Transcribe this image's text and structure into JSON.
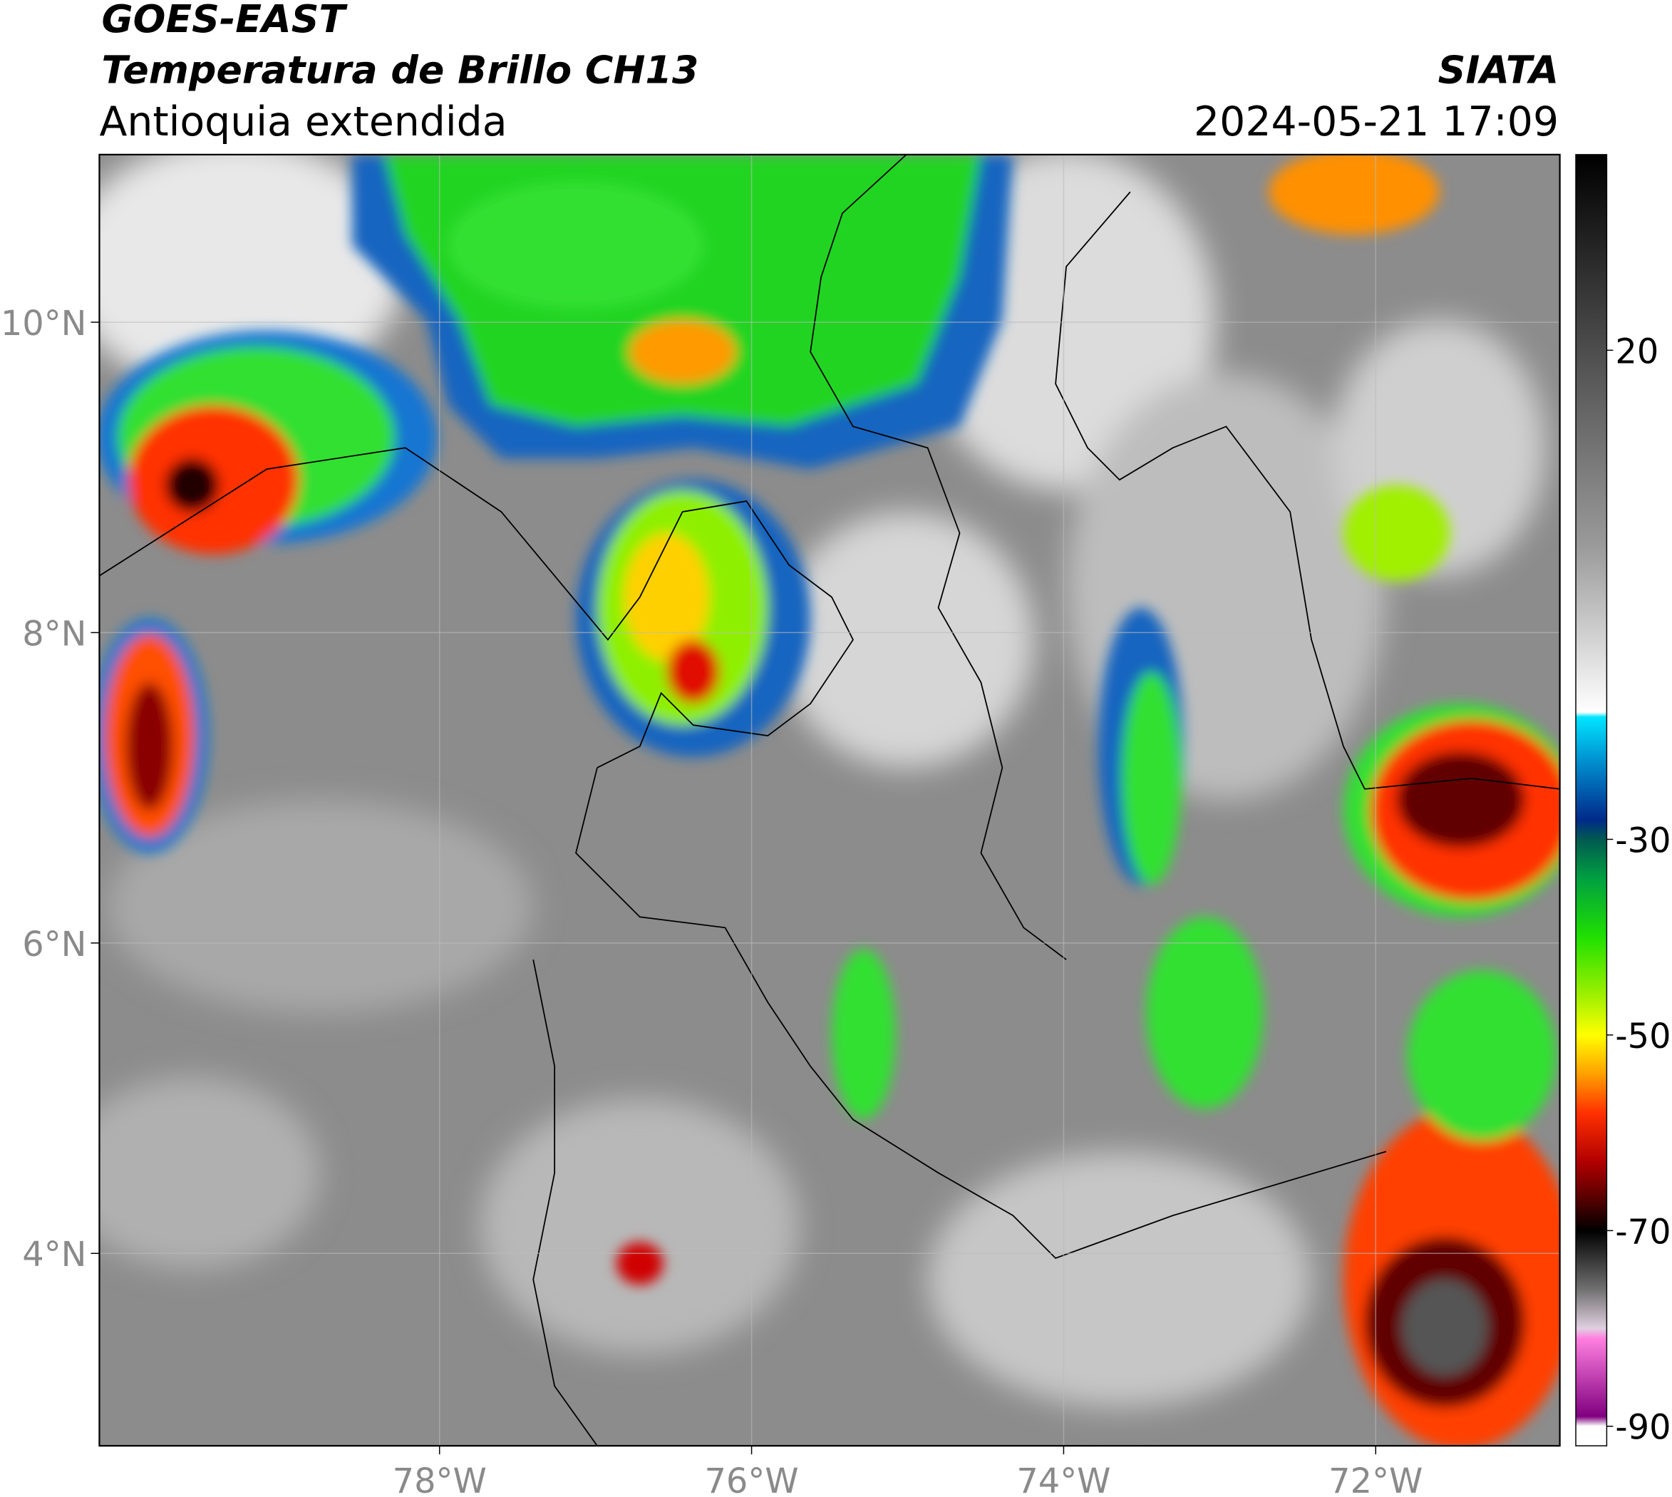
{
  "header": {
    "title": "GOES-EAST",
    "subtitle": "Temperatura de Brillo CH13",
    "region": "Antioquia extendida",
    "source": "SIATA",
    "datetime": "2024-05-21 17:09"
  },
  "map": {
    "xlim": [
      -80.18,
      -70.82
    ],
    "ylim": [
      2.76,
      11.08
    ],
    "xticks": [
      {
        "value": -78,
        "label": "78°W"
      },
      {
        "value": -76,
        "label": "76°W"
      },
      {
        "value": -74,
        "label": "74°W"
      },
      {
        "value": -72,
        "label": "72°W"
      }
    ],
    "yticks": [
      {
        "value": 10,
        "label": "10°N"
      },
      {
        "value": 8,
        "label": "8°N"
      },
      {
        "value": 6,
        "label": "6°N"
      },
      {
        "value": 4,
        "label": "4°N"
      }
    ],
    "grid": true
  },
  "colorbar": {
    "lim": [
      -92,
      40
    ],
    "ticks": [
      20,
      -30,
      -50,
      -70,
      -90
    ],
    "colormap": [
      {
        "value": 40,
        "color": "#000000"
      },
      {
        "value": 25,
        "color": "#3a3a3a"
      },
      {
        "value": 0,
        "color": "#9a9a9a"
      },
      {
        "value": -17,
        "color": "#ffffff"
      },
      {
        "value": -17.5,
        "color": "#00e5ff"
      },
      {
        "value": -22,
        "color": "#0090d0"
      },
      {
        "value": -28,
        "color": "#002a8a"
      },
      {
        "value": -30,
        "color": "#005a50"
      },
      {
        "value": -34,
        "color": "#00a040"
      },
      {
        "value": -40,
        "color": "#20e000"
      },
      {
        "value": -46,
        "color": "#a0f000"
      },
      {
        "value": -50,
        "color": "#ffff00"
      },
      {
        "value": -54,
        "color": "#ffa000"
      },
      {
        "value": -58,
        "color": "#ff3000"
      },
      {
        "value": -63,
        "color": "#b00000"
      },
      {
        "value": -67,
        "color": "#500000"
      },
      {
        "value": -70,
        "color": "#000000"
      },
      {
        "value": -76,
        "color": "#707070"
      },
      {
        "value": -80,
        "color": "#e0d0e0"
      },
      {
        "value": -81,
        "color": "#ff80e0"
      },
      {
        "value": -89,
        "color": "#800080"
      },
      {
        "value": -90,
        "color": "#ffffff"
      },
      {
        "value": -92,
        "color": "#ffffff"
      }
    ]
  }
}
